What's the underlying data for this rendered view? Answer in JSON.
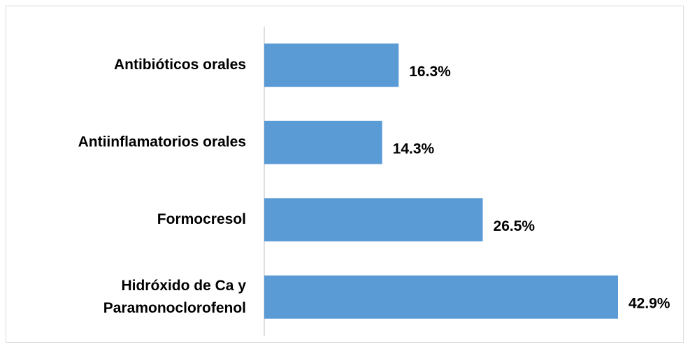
{
  "chart_data": {
    "type": "hbar",
    "categories": [
      "Antibióticos orales",
      "Antiinflamatorios orales",
      "Formocresol",
      "Hidróxido de Ca y\nParamonoclorofenol"
    ],
    "values": [
      16.3,
      14.3,
      26.5,
      42.9
    ],
    "value_labels": [
      "16.3%",
      "14.3%",
      "26.5%",
      "42.9%"
    ],
    "color": "#5b9bd5"
  }
}
